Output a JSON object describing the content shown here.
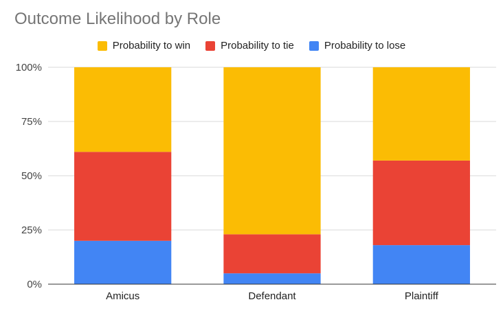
{
  "chart_data": {
    "type": "bar",
    "stacked": "percent",
    "title": "Outcome Likelihood by Role",
    "xlabel": "",
    "ylabel": "",
    "categories": [
      "Amicus",
      "Defendant",
      "Plaintiff"
    ],
    "series": [
      {
        "name": "Probability to lose",
        "color": "#4285f4",
        "values": [
          0.2,
          0.05,
          0.18
        ]
      },
      {
        "name": "Probability to tie",
        "color": "#ea4335",
        "values": [
          0.41,
          0.18,
          0.39
        ]
      },
      {
        "name": "Probability to win",
        "color": "#fbbc04",
        "values": [
          0.39,
          0.77,
          0.43
        ]
      }
    ],
    "legend_order": [
      "Probability to win",
      "Probability to tie",
      "Probability to lose"
    ],
    "yticks": [
      "0%",
      "25%",
      "50%",
      "75%",
      "100%"
    ],
    "ylim": [
      0,
      1
    ],
    "grid": true,
    "legend_position": "top"
  }
}
